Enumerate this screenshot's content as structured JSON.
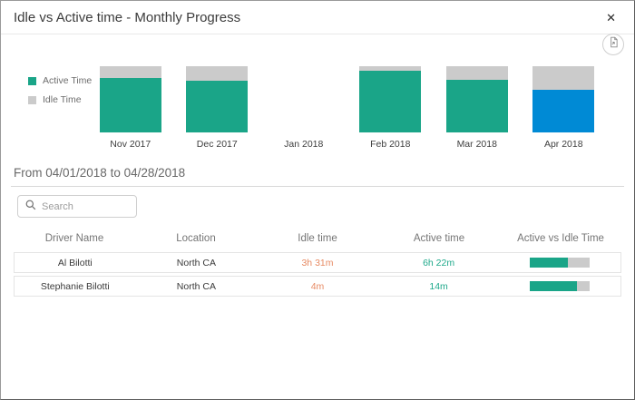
{
  "modal": {
    "title": "Idle vs Active time - Monthly Progress",
    "close_glyph": "✕"
  },
  "colors": {
    "active": "#1AA588",
    "idle": "#CBCBCB",
    "selected": "#008AD5",
    "idle_value_text": "#E78A63",
    "active_value_text": "#1FA98B"
  },
  "chart_data": {
    "type": "bar",
    "stacked": true,
    "categories": [
      "Nov 2017",
      "Dec 2017",
      "Jan 2018",
      "Feb 2018",
      "Mar 2018",
      "Apr 2018"
    ],
    "series": [
      {
        "name": "Active Time",
        "values": [
          82,
          78,
          0,
          93,
          79,
          64
        ]
      },
      {
        "name": "Idle Time",
        "values": [
          18,
          22,
          0,
          7,
          21,
          36
        ]
      }
    ],
    "units": "percent of month total (stacked to 100)",
    "selected_category": "Apr 2018",
    "legend_position": "left",
    "axes_visible": false,
    "grid": false,
    "ylim": [
      0,
      100
    ]
  },
  "legend": {
    "items": [
      {
        "label": "Active Time",
        "color": "#1AA588"
      },
      {
        "label": "Idle Time",
        "color": "#CBCBCB"
      }
    ]
  },
  "period_heading": "From 04/01/2018 to 04/28/2018",
  "search": {
    "placeholder": "Search"
  },
  "table": {
    "columns": [
      "Driver Name",
      "Location",
      "Idle time",
      "Active time",
      "Active vs Idle Time"
    ],
    "rows": [
      {
        "driver": "Al Bilotti",
        "location": "North CA",
        "idle": "3h 31m",
        "active": "6h 22m",
        "active_pct": 64
      },
      {
        "driver": "Stephanie Bilotti",
        "location": "North CA",
        "idle": "4m",
        "active": "14m",
        "active_pct": 78
      }
    ]
  },
  "icons": {
    "close": "close-icon",
    "export": "export-report-icon",
    "search": "search-icon"
  }
}
